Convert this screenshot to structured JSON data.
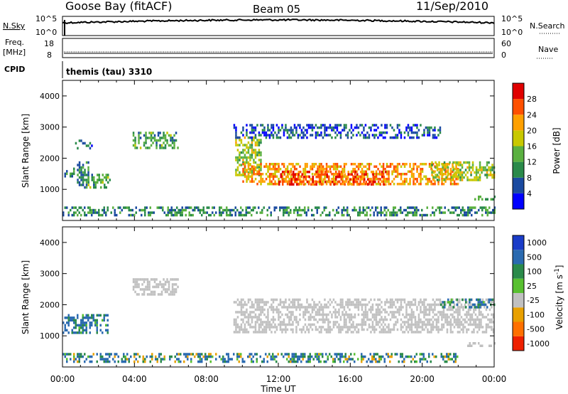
{
  "header": {
    "station": "Goose Bay (fitACF)",
    "beam": "Beam 05",
    "date": "11/Sep/2010"
  },
  "left_labels": {
    "nsky": "N.Sky",
    "freq": "Freq.",
    "freq_unit": "[MHz]",
    "cpid": "CPID"
  },
  "right_labels": {
    "nsearch": "N.Search",
    "nave": "Nave"
  },
  "noise_axis": {
    "left_top": "10^5",
    "left_bottom": "10^0",
    "right_top": "10^5",
    "right_bottom": "10^0"
  },
  "freq_axis": {
    "left_top": "18",
    "left_bottom": "8",
    "right_top": "60",
    "right_bottom": "0"
  },
  "cpid_text": "themis (tau) 3310",
  "xaxis": {
    "label": "Time UT",
    "ticks": [
      "00:00",
      "04:00",
      "08:00",
      "12:00",
      "16:00",
      "20:00",
      "00:00"
    ]
  },
  "colors": {
    "power_scale": [
      "#0000ff",
      "#1a4aa0",
      "#2a8a4a",
      "#5ab040",
      "#c8c800",
      "#ffa000",
      "#ff5000",
      "#e00000"
    ],
    "velocity_scale": [
      "#1a3cc8",
      "#2a6ab0",
      "#2a8a4a",
      "#58c030",
      "#c0c0c0",
      "#e8a000",
      "#ff7000",
      "#ee2000"
    ],
    "ground_scatter": "#c0c0c0"
  },
  "chart_data": [
    {
      "type": "heatmap",
      "title": "Power",
      "ylabel": "Slant Range [km]",
      "xlabel": "",
      "ylim": [
        0,
        4500
      ],
      "xlim": [
        0,
        24
      ],
      "yticks": [
        "1000",
        "2000",
        "3000",
        "4000"
      ],
      "colorbar": {
        "label": "Power [dB]",
        "ticks": [
          "4",
          "8",
          "12",
          "16",
          "20",
          "24",
          "28"
        ],
        "range": [
          0,
          32
        ]
      },
      "echo_regions": [
        {
          "t0": 0.0,
          "t1": 0.6,
          "r0": 1350,
          "r1": 1700,
          "level": 10
        },
        {
          "t0": 0.8,
          "t1": 1.4,
          "r0": 1100,
          "r1": 1900,
          "level": 9
        },
        {
          "t0": 1.4,
          "t1": 2.6,
          "r0": 1100,
          "r1": 1500,
          "level": 12
        },
        {
          "t0": 0.7,
          "t1": 1.6,
          "r0": 2350,
          "r1": 2600,
          "level": 7
        },
        {
          "t0": 3.9,
          "t1": 6.4,
          "r0": 2350,
          "r1": 2850,
          "level": 12
        },
        {
          "t0": 9.6,
          "t1": 11.0,
          "r0": 1500,
          "r1": 2700,
          "level": 16
        },
        {
          "t0": 10.0,
          "t1": 22.0,
          "r0": 1150,
          "r1": 1850,
          "level": 22
        },
        {
          "t0": 12.0,
          "t1": 18.0,
          "r0": 1200,
          "r1": 1600,
          "level": 27
        },
        {
          "t0": 20.5,
          "t1": 24.0,
          "r0": 1300,
          "r1": 1900,
          "level": 16
        },
        {
          "t0": 9.5,
          "t1": 21.0,
          "r0": 2700,
          "r1": 3100,
          "level": 6
        },
        {
          "t0": 0.0,
          "t1": 24.0,
          "r0": 150,
          "r1": 450,
          "level": 10
        },
        {
          "t0": 22.5,
          "t1": 24.0,
          "r0": 650,
          "r1": 800,
          "level": 14
        }
      ]
    },
    {
      "type": "heatmap",
      "title": "Velocity",
      "ylabel": "Slant Range [km]",
      "xlabel": "Time UT",
      "ylim": [
        0,
        4500
      ],
      "xlim": [
        0,
        24
      ],
      "yticks": [
        "1000",
        "2000",
        "3000",
        "4000"
      ],
      "colorbar": {
        "label": "Velocity [m s^-1]",
        "ticks": [
          "1000",
          "500",
          "100",
          "25",
          "-25",
          "-100",
          "-500",
          "-1000"
        ]
      },
      "echo_regions": [
        {
          "t0": 0.0,
          "t1": 2.6,
          "r0": 1100,
          "r1": 1700,
          "kind": "ionospheric",
          "velocity": 150
        },
        {
          "t0": 3.9,
          "t1": 6.4,
          "r0": 2350,
          "r1": 2850,
          "kind": "ground"
        },
        {
          "t0": 9.5,
          "t1": 24.0,
          "r0": 1150,
          "r1": 2200,
          "kind": "ground"
        },
        {
          "t0": 21.0,
          "t1": 24.0,
          "r0": 1900,
          "r1": 2200,
          "kind": "ionospheric",
          "velocity": 150
        },
        {
          "t0": 0.0,
          "t1": 22.0,
          "r0": 150,
          "r1": 450,
          "kind": "ionospheric",
          "velocity": 100
        },
        {
          "t0": 22.5,
          "t1": 24.0,
          "r0": 650,
          "r1": 800,
          "kind": "ground"
        }
      ]
    }
  ]
}
